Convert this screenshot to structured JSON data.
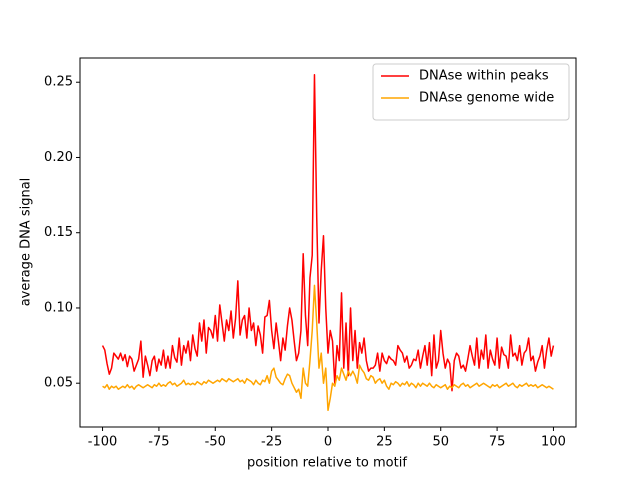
{
  "chart_data": {
    "type": "line",
    "xlabel": "position relative to motif",
    "ylabel": "average DNA signal",
    "x": [
      -100,
      -99,
      -98,
      -97,
      -96,
      -95,
      -94,
      -93,
      -92,
      -91,
      -90,
      -89,
      -88,
      -87,
      -86,
      -85,
      -84,
      -83,
      -82,
      -81,
      -80,
      -79,
      -78,
      -77,
      -76,
      -75,
      -74,
      -73,
      -72,
      -71,
      -70,
      -69,
      -68,
      -67,
      -66,
      -65,
      -64,
      -63,
      -62,
      -61,
      -60,
      -59,
      -58,
      -57,
      -56,
      -55,
      -54,
      -53,
      -52,
      -51,
      -50,
      -49,
      -48,
      -47,
      -46,
      -45,
      -44,
      -43,
      -42,
      -41,
      -40,
      -39,
      -38,
      -37,
      -36,
      -35,
      -34,
      -33,
      -32,
      -31,
      -30,
      -29,
      -28,
      -27,
      -26,
      -25,
      -24,
      -23,
      -22,
      -21,
      -20,
      -19,
      -18,
      -17,
      -16,
      -15,
      -14,
      -13,
      -12,
      -11,
      -10,
      -9,
      -8,
      -7,
      -6,
      -5,
      -4,
      -3,
      -2,
      -1,
      0,
      1,
      2,
      3,
      4,
      5,
      6,
      7,
      8,
      9,
      10,
      11,
      12,
      13,
      14,
      15,
      16,
      17,
      18,
      19,
      20,
      21,
      22,
      23,
      24,
      25,
      26,
      27,
      28,
      29,
      30,
      31,
      32,
      33,
      34,
      35,
      36,
      37,
      38,
      39,
      40,
      41,
      42,
      43,
      44,
      45,
      46,
      47,
      48,
      49,
      50,
      51,
      52,
      53,
      54,
      55,
      56,
      57,
      58,
      59,
      60,
      61,
      62,
      63,
      64,
      65,
      66,
      67,
      68,
      69,
      70,
      71,
      72,
      73,
      74,
      75,
      76,
      77,
      78,
      79,
      80,
      81,
      82,
      83,
      84,
      85,
      86,
      87,
      88,
      89,
      90,
      91,
      92,
      93,
      94,
      95,
      96,
      97,
      98,
      99,
      100
    ],
    "series": [
      {
        "name": "DNAse within peaks",
        "color": "#ff0000",
        "values": [
          0.075,
          0.072,
          0.063,
          0.056,
          0.06,
          0.07,
          0.068,
          0.066,
          0.07,
          0.065,
          0.069,
          0.061,
          0.068,
          0.066,
          0.058,
          0.062,
          0.066,
          0.078,
          0.054,
          0.068,
          0.062,
          0.055,
          0.065,
          0.068,
          0.058,
          0.066,
          0.062,
          0.072,
          0.06,
          0.068,
          0.06,
          0.075,
          0.067,
          0.064,
          0.08,
          0.062,
          0.075,
          0.07,
          0.078,
          0.065,
          0.082,
          0.073,
          0.068,
          0.09,
          0.078,
          0.092,
          0.07,
          0.087,
          0.085,
          0.08,
          0.095,
          0.078,
          0.102,
          0.09,
          0.078,
          0.092,
          0.085,
          0.098,
          0.08,
          0.093,
          0.118,
          0.082,
          0.092,
          0.095,
          0.08,
          0.1,
          0.085,
          0.09,
          0.075,
          0.088,
          0.082,
          0.07,
          0.094,
          0.095,
          0.105,
          0.085,
          0.073,
          0.09,
          0.078,
          0.065,
          0.08,
          0.072,
          0.088,
          0.1,
          0.092,
          0.078,
          0.065,
          0.07,
          0.085,
          0.136,
          0.095,
          0.075,
          0.12,
          0.135,
          0.255,
          0.16,
          0.09,
          0.125,
          0.148,
          0.1,
          0.07,
          0.085,
          0.078,
          0.05,
          0.075,
          0.065,
          0.11,
          0.06,
          0.09,
          0.055,
          0.1,
          0.065,
          0.085,
          0.06,
          0.077,
          0.07,
          0.08,
          0.065,
          0.058,
          0.06,
          0.06,
          0.062,
          0.07,
          0.058,
          0.07,
          0.065,
          0.063,
          0.068,
          0.066,
          0.065,
          0.062,
          0.075,
          0.072,
          0.07,
          0.064,
          0.068,
          0.06,
          0.062,
          0.066,
          0.065,
          0.072,
          0.06,
          0.068,
          0.075,
          0.062,
          0.077,
          0.055,
          0.082,
          0.06,
          0.065,
          0.085,
          0.07,
          0.06,
          0.066,
          0.063,
          0.045,
          0.065,
          0.07,
          0.068,
          0.06,
          0.062,
          0.058,
          0.066,
          0.075,
          0.068,
          0.062,
          0.08,
          0.06,
          0.072,
          0.066,
          0.082,
          0.06,
          0.072,
          0.066,
          0.062,
          0.08,
          0.06,
          0.074,
          0.069,
          0.068,
          0.06,
          0.082,
          0.068,
          0.07,
          0.065,
          0.075,
          0.062,
          0.07,
          0.072,
          0.08,
          0.065,
          0.068,
          0.058,
          0.064,
          0.068,
          0.075,
          0.06,
          0.072,
          0.08,
          0.068,
          0.075
        ]
      },
      {
        "name": "DNAse genome wide",
        "color": "#ffa500",
        "values": [
          0.048,
          0.047,
          0.049,
          0.046,
          0.048,
          0.047,
          0.048,
          0.046,
          0.047,
          0.048,
          0.047,
          0.049,
          0.047,
          0.048,
          0.046,
          0.048,
          0.049,
          0.048,
          0.047,
          0.048,
          0.049,
          0.048,
          0.047,
          0.049,
          0.048,
          0.05,
          0.048,
          0.049,
          0.048,
          0.05,
          0.051,
          0.049,
          0.05,
          0.048,
          0.049,
          0.05,
          0.052,
          0.049,
          0.05,
          0.049,
          0.05,
          0.049,
          0.051,
          0.05,
          0.049,
          0.051,
          0.05,
          0.052,
          0.051,
          0.05,
          0.051,
          0.052,
          0.051,
          0.053,
          0.052,
          0.051,
          0.053,
          0.052,
          0.051,
          0.052,
          0.053,
          0.051,
          0.052,
          0.05,
          0.053,
          0.052,
          0.051,
          0.049,
          0.052,
          0.05,
          0.049,
          0.052,
          0.051,
          0.055,
          0.05,
          0.058,
          0.06,
          0.054,
          0.052,
          0.05,
          0.049,
          0.053,
          0.056,
          0.055,
          0.05,
          0.047,
          0.044,
          0.046,
          0.04,
          0.06,
          0.05,
          0.048,
          0.065,
          0.085,
          0.115,
          0.09,
          0.06,
          0.07,
          0.05,
          0.06,
          0.032,
          0.04,
          0.05,
          0.048,
          0.055,
          0.052,
          0.06,
          0.056,
          0.052,
          0.058,
          0.055,
          0.058,
          0.055,
          0.05,
          0.062,
          0.059,
          0.057,
          0.053,
          0.052,
          0.055,
          0.054,
          0.05,
          0.052,
          0.053,
          0.05,
          0.052,
          0.048,
          0.046,
          0.05,
          0.049,
          0.051,
          0.05,
          0.048,
          0.05,
          0.049,
          0.051,
          0.048,
          0.05,
          0.049,
          0.047,
          0.05,
          0.048,
          0.05,
          0.049,
          0.048,
          0.05,
          0.048,
          0.047,
          0.049,
          0.048,
          0.047,
          0.048,
          0.049,
          0.046,
          0.048,
          0.047,
          0.049,
          0.048,
          0.047,
          0.049,
          0.05,
          0.048,
          0.049,
          0.047,
          0.048,
          0.049,
          0.05,
          0.048,
          0.049,
          0.05,
          0.049,
          0.048,
          0.047,
          0.049,
          0.048,
          0.049,
          0.047,
          0.048,
          0.049,
          0.05,
          0.048,
          0.049,
          0.05,
          0.048,
          0.047,
          0.049,
          0.048,
          0.049,
          0.05,
          0.048,
          0.049,
          0.048,
          0.049,
          0.047,
          0.048,
          0.049,
          0.048,
          0.047,
          0.048,
          0.047,
          0.046
        ]
      }
    ],
    "xlim": [
      -110,
      110
    ],
    "ylim": [
      0.0209,
      0.2661
    ],
    "xticks": [
      -100,
      -75,
      -50,
      -25,
      0,
      25,
      50,
      75,
      100
    ],
    "yticks": [
      0.05,
      {
        "value": 0.1,
        "label": "0.10"
      },
      0.15,
      {
        "value": 0.2,
        "label": "0.20"
      },
      0.25
    ],
    "legend": "upper right"
  }
}
